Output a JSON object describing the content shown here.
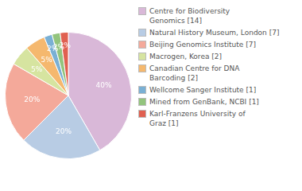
{
  "chart_data": {
    "type": "pie",
    "categories": [
      "Centre for Biodiversity\nGenomics [14]",
      "Natural History Museum, London [7]",
      "Beijing Genomics Institute [7]",
      "Macrogen, Korea [2]",
      "Canadian Centre for DNA\nBarcoding [2]",
      "Wellcome Sanger Institute [1]",
      "Mined from GenBank, NCBI [1]",
      "Karl-Franzens University of\nGraz [1]"
    ],
    "values": [
      40,
      20,
      20,
      5,
      5,
      2,
      2,
      2
    ],
    "value_labels": [
      "40%",
      "20%",
      "20%",
      "5%",
      "5%",
      "2%",
      "2%",
      "2%"
    ],
    "colors": [
      "#d9b8d8",
      "#b8cce4",
      "#f4a99a",
      "#d6e4a0",
      "#f5b86e",
      "#7ab0d4",
      "#93c47d",
      "#e06050"
    ],
    "data_labels": true,
    "legend": "right"
  }
}
